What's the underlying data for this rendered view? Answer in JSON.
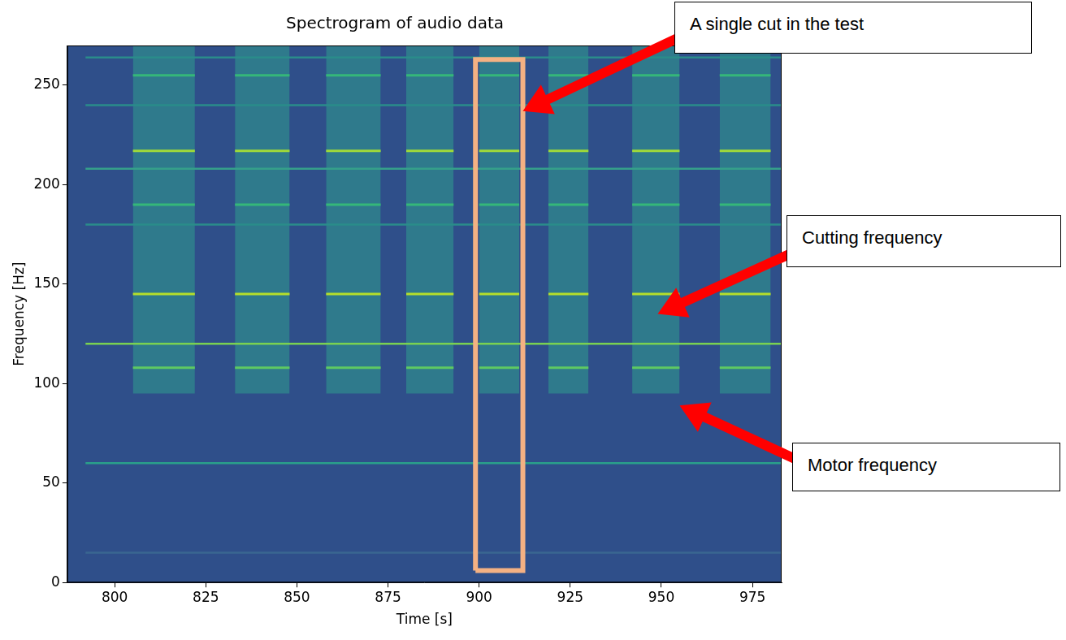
{
  "chart_data": {
    "type": "spectrogram",
    "title": "Spectrogram of audio data",
    "x_label": "Time [s]",
    "y_label": "Frequency [Hz]",
    "xlim": [
      787,
      983
    ],
    "xticks": [
      800,
      825,
      850,
      875,
      900,
      925,
      950,
      975
    ],
    "ylim": [
      0,
      270
    ],
    "yticks": [
      0,
      50,
      100,
      150,
      200,
      250
    ],
    "grid": false,
    "color": "#2f4f8a",
    "tones": [
      {
        "frequency": 15,
        "start": 792,
        "end": 983,
        "color": "#3a6690"
      },
      {
        "frequency": 60,
        "start": 792,
        "end": 983,
        "color": "#2aa08a"
      },
      {
        "frequency": 120,
        "start": 792,
        "end": 983,
        "color": "#7ad151"
      },
      {
        "frequency": 180,
        "start": 792,
        "end": 983,
        "color": "#2a8c8a"
      },
      {
        "frequency": 208,
        "start": 792,
        "end": 983,
        "color": "#35a08a"
      },
      {
        "frequency": 240,
        "start": 792,
        "end": 983,
        "color": "#2a8c8a"
      },
      {
        "frequency": 264,
        "start": 792,
        "end": 983,
        "color": "#2a8c8a"
      }
    ],
    "cuts": [
      {
        "start": 805,
        "end": 822
      },
      {
        "start": 833,
        "end": 848
      },
      {
        "start": 858,
        "end": 873
      },
      {
        "start": 880,
        "end": 893
      },
      {
        "start": 900,
        "end": 911
      },
      {
        "start": 919,
        "end": 930
      },
      {
        "start": 942,
        "end": 955
      },
      {
        "start": 966,
        "end": 980
      }
    ],
    "cut_band": {
      "low": 95,
      "high": 270,
      "color": "#2f7a8c"
    },
    "cut_tones": [
      {
        "frequency": 108,
        "color": "#5ec962"
      },
      {
        "frequency": 145,
        "color": "#b5de2b"
      },
      {
        "frequency": 190,
        "color": "#35b779"
      },
      {
        "frequency": 217,
        "color": "#a0da39"
      },
      {
        "frequency": 255,
        "color": "#35b779"
      }
    ],
    "highlight": {
      "start": 899,
      "end": 912,
      "low": 6,
      "high": 263,
      "color": "#f4b183"
    },
    "annotations": [
      {
        "text": "A single cut in the test",
        "x": 912,
        "y": 237
      },
      {
        "text": "Cutting frequency",
        "x": 949,
        "y": 135
      },
      {
        "text": "Motor frequency",
        "x": 955,
        "y": 89
      }
    ]
  }
}
